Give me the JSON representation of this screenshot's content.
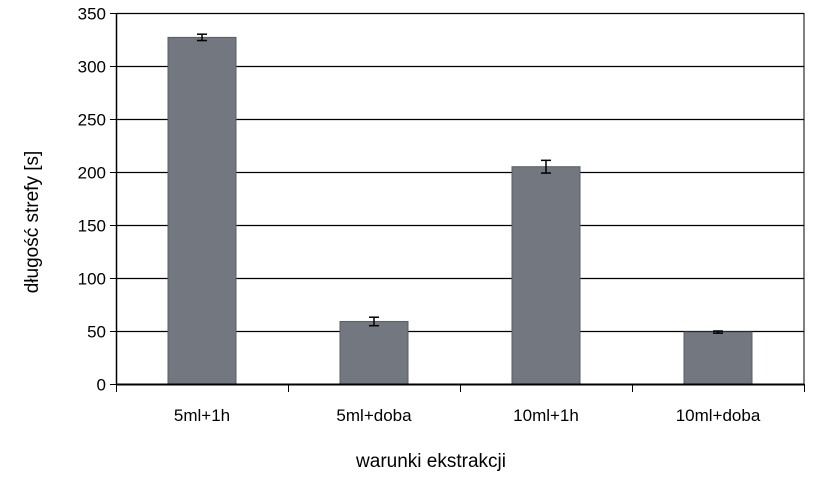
{
  "chart_data": {
    "type": "bar",
    "categories": [
      "5ml+1h",
      "5ml+doba",
      "10ml+1h",
      "10ml+doba"
    ],
    "values": [
      327,
      59,
      205,
      49
    ],
    "errors": [
      3,
      4,
      6,
      1
    ],
    "xlabel": "warunki ekstrakcji",
    "ylabel": "długość strefy [s]",
    "ylim": [
      0,
      350
    ],
    "yticks": [
      0,
      50,
      100,
      150,
      200,
      250,
      300,
      350
    ],
    "grid": true,
    "legend": "none",
    "bar_color": "#737780",
    "bar_edge_color": "#5b5e66",
    "grid_color": "#000000",
    "axis_color": "#000000"
  }
}
